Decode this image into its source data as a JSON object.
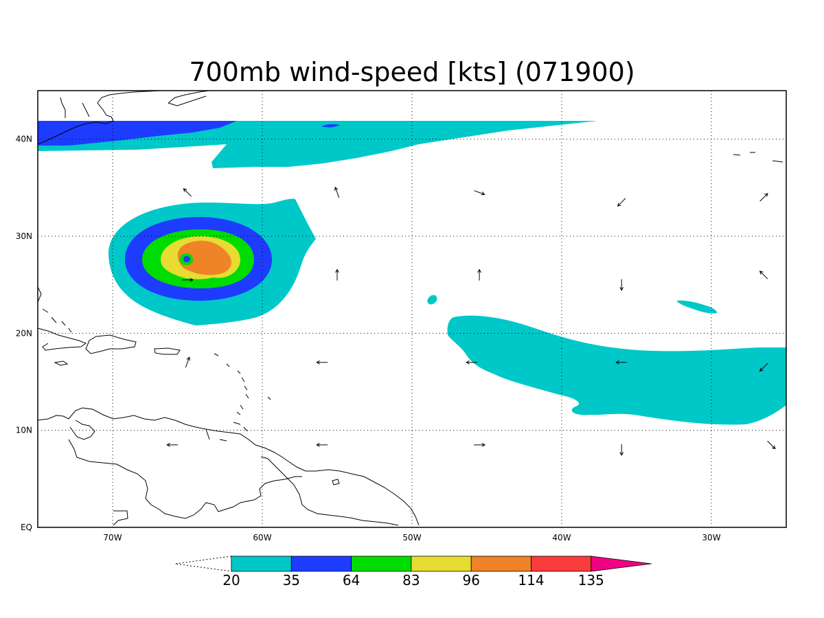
{
  "title": "700mb wind-speed [kts] (071900)",
  "map": {
    "lon_range": [
      -75,
      -25
    ],
    "lat_range": [
      0,
      45
    ],
    "lon_ticks": [
      {
        "lon": -70,
        "label": "70W"
      },
      {
        "lon": -60,
        "label": "60W"
      },
      {
        "lon": -50,
        "label": "50W"
      },
      {
        "lon": -40,
        "label": "40W"
      },
      {
        "lon": -30,
        "label": "30W"
      }
    ],
    "lat_ticks": [
      {
        "lat": 0,
        "label": "EQ"
      },
      {
        "lat": 10,
        "label": "10N"
      },
      {
        "lat": 20,
        "label": "20N"
      },
      {
        "lat": 30,
        "label": "30N"
      },
      {
        "lat": 40,
        "label": "40N"
      }
    ],
    "grid": "dotted"
  },
  "colorbar": {
    "levels": [
      "20",
      "35",
      "64",
      "83",
      "96",
      "114",
      "135"
    ],
    "colors": [
      "#00c8c8",
      "#1e3cff",
      "#00dc00",
      "#e6dc32",
      "#f08228",
      "#fa3c3c",
      "#f00082"
    ],
    "below_min_color": "#ffffff"
  },
  "wind_arrows": [
    {
      "lon": -65,
      "lat": 34.5,
      "dir": "northwest"
    },
    {
      "lon": -55,
      "lat": 34.5,
      "dir": "north-northwest"
    },
    {
      "lon": -45.5,
      "lat": 34.5,
      "dir": "east-southeast"
    },
    {
      "lon": -36,
      "lat": 33.5,
      "dir": "southwest"
    },
    {
      "lon": -26.5,
      "lat": 34,
      "dir": "northeast"
    },
    {
      "lon": -55,
      "lat": 26,
      "dir": "north"
    },
    {
      "lon": -45.5,
      "lat": 26,
      "dir": "north"
    },
    {
      "lon": -36,
      "lat": 25,
      "dir": "south"
    },
    {
      "lon": -26.5,
      "lat": 26,
      "dir": "northwest"
    },
    {
      "lon": -65,
      "lat": 25.5,
      "dir": "east"
    },
    {
      "lon": -56,
      "lat": 17,
      "dir": "west"
    },
    {
      "lon": -46,
      "lat": 17,
      "dir": "west"
    },
    {
      "lon": -36,
      "lat": 17,
      "dir": "west"
    },
    {
      "lon": -26.5,
      "lat": 16.5,
      "dir": "southwest"
    },
    {
      "lon": -65,
      "lat": 17,
      "dir": "north-northeast"
    },
    {
      "lon": -66,
      "lat": 8.5,
      "dir": "west"
    },
    {
      "lon": -56,
      "lat": 8.5,
      "dir": "west"
    },
    {
      "lon": -45.5,
      "lat": 8.5,
      "dir": "east"
    },
    {
      "lon": -36,
      "lat": 8,
      "dir": "south"
    },
    {
      "lon": -26,
      "lat": 8.5,
      "dir": "southeast"
    }
  ]
}
